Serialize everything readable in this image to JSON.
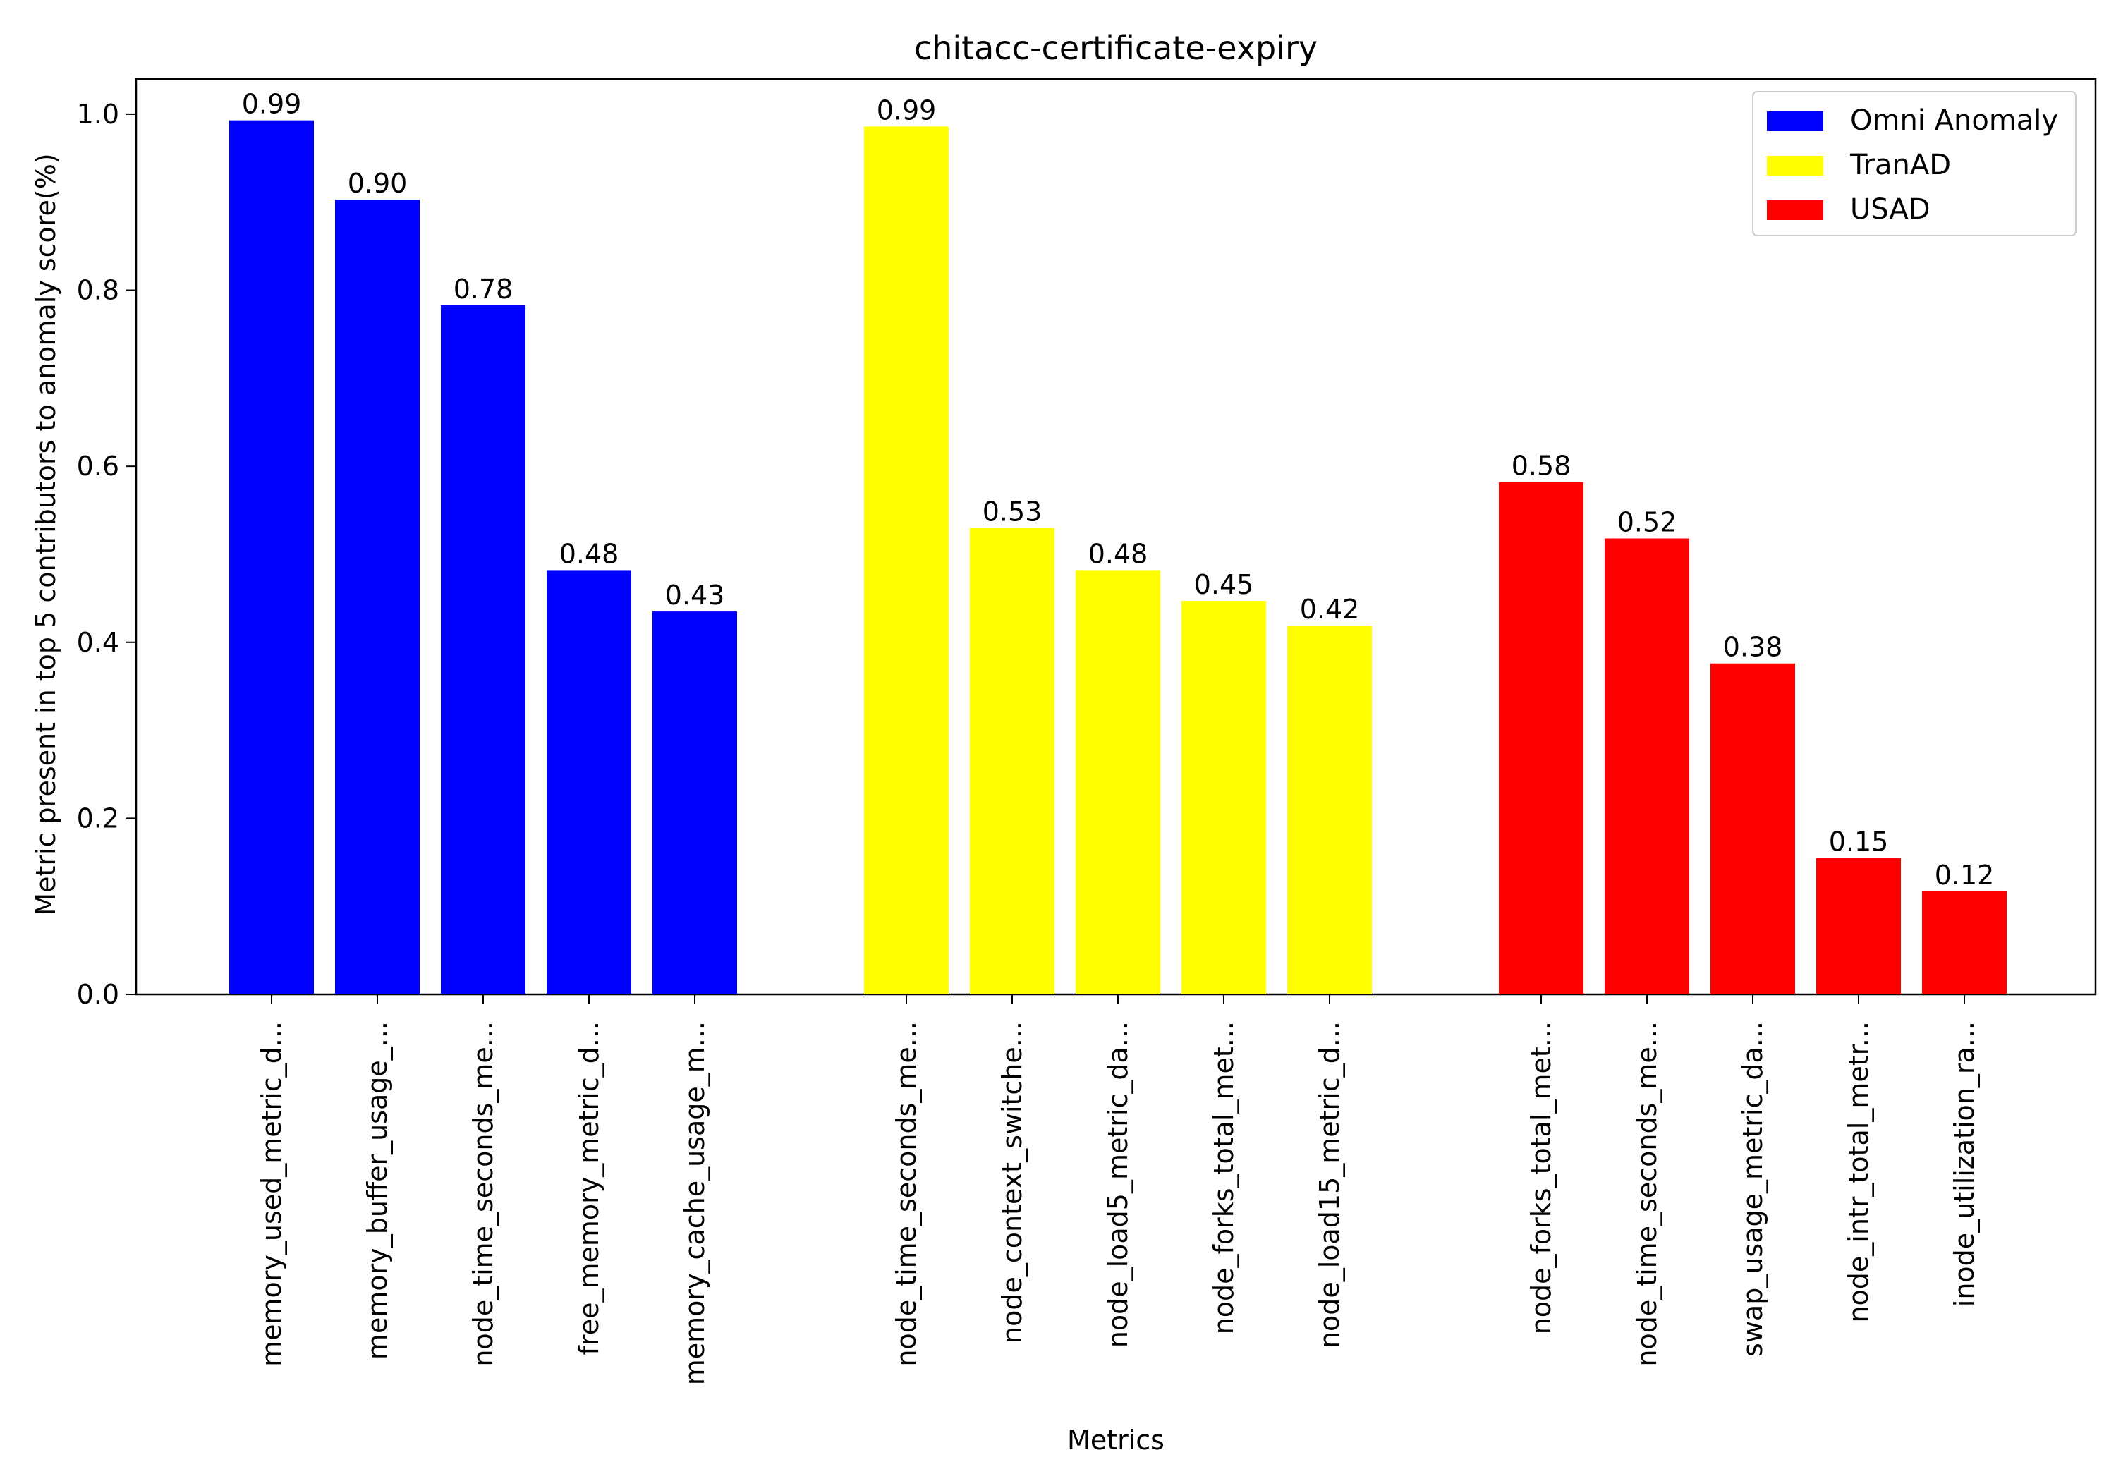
{
  "chart_data": {
    "type": "bar",
    "title": "chitacc-certificate-expiry",
    "xlabel": "Metrics",
    "ylabel": "Metric present in top 5 contributors to anomaly score(%)",
    "ylim": [
      0,
      1.04
    ],
    "yticks": [
      0.0,
      0.2,
      0.4,
      0.6,
      0.8,
      1.0
    ],
    "ytick_labels": [
      "0.0",
      "0.2",
      "0.4",
      "0.6",
      "0.8",
      "1.0"
    ],
    "grid": false,
    "legend_position": "top-right",
    "series": [
      {
        "name": "Omni Anomaly",
        "color": "#0000ff",
        "categories": [
          "memory_used_metric_d...",
          "memory_buffer_usage_...",
          "node_time_seconds_me...",
          "free_memory_metric_d...",
          "memory_cache_usage_m..."
        ],
        "values": [
          0.993,
          0.903,
          0.783,
          0.482,
          0.435
        ],
        "labels": [
          "0.99",
          "0.90",
          "0.78",
          "0.48",
          "0.43"
        ]
      },
      {
        "name": "TranAD",
        "color": "#ffff00",
        "categories": [
          "node_time_seconds_me...",
          "node_context_switche...",
          "node_load5_metric_da...",
          "node_forks_total_met...",
          "node_load15_metric_d..."
        ],
        "values": [
          0.986,
          0.53,
          0.482,
          0.447,
          0.419
        ],
        "labels": [
          "0.99",
          "0.53",
          "0.48",
          "0.45",
          "0.42"
        ]
      },
      {
        "name": "USAD",
        "color": "#ff0000",
        "categories": [
          "node_forks_total_met...",
          "node_time_seconds_me...",
          "swap_usage_metric_da...",
          "node_intr_total_metr...",
          "inode_utilization_ra..."
        ],
        "values": [
          0.582,
          0.518,
          0.376,
          0.155,
          0.117
        ],
        "labels": [
          "0.58",
          "0.52",
          "0.38",
          "0.15",
          "0.12"
        ]
      }
    ]
  }
}
